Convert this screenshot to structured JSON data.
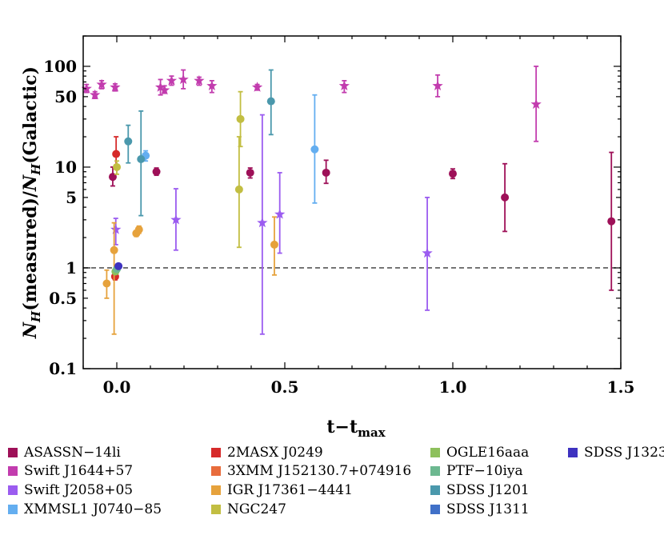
{
  "chart_data": {
    "type": "scatter",
    "title": "",
    "xlabel": "t−t",
    "xlabel_sub": "max",
    "ylabel_parts": [
      "N",
      "H",
      "(measured)/",
      "N",
      "H",
      "(Galactic)"
    ],
    "ylabel": "NH(measured)/NH(Galactic)",
    "xlim": [
      -0.1,
      1.5
    ],
    "ylim": [
      0.1,
      200
    ],
    "yscale": "log",
    "grid": false,
    "legend_position": "bottom",
    "x_ticks": [
      0.0,
      0.5,
      1.0,
      1.5
    ],
    "x_tick_labels": [
      "0.0",
      "0.5",
      "1.0",
      "1.5"
    ],
    "y_ticks": [
      0.1,
      0.5,
      1,
      5,
      10,
      50,
      100
    ],
    "y_tick_labels": [
      "0.1",
      "0.5",
      "1",
      "5",
      "10",
      "50",
      "100"
    ],
    "reference_line": {
      "y": 1,
      "style": "dashed",
      "color": "#555555"
    },
    "series": [
      {
        "name": "ASASSN−14li",
        "color": "#9e1058",
        "marker": "circle",
        "points": [
          {
            "x": -0.012,
            "y": 8.0,
            "lo": 6.5,
            "hi": 10.0
          },
          {
            "x": 0.118,
            "y": 9.0,
            "lo": 8.3,
            "hi": 9.8
          },
          {
            "x": 0.397,
            "y": 8.8,
            "lo": 7.8,
            "hi": 9.8
          },
          {
            "x": 0.623,
            "y": 8.8,
            "lo": 6.9,
            "hi": 11.7
          },
          {
            "x": 1.0,
            "y": 8.6,
            "lo": 7.7,
            "hi": 9.6
          },
          {
            "x": 1.155,
            "y": 5.0,
            "lo": 2.3,
            "hi": 10.8
          },
          {
            "x": 1.472,
            "y": 2.9,
            "lo": 0.6,
            "hi": 14.0
          }
        ]
      },
      {
        "name": "Swift J1644+57",
        "color": "#c23cae",
        "marker": "star",
        "points": [
          {
            "x": -0.09,
            "y": 60,
            "lo": 55,
            "hi": 66
          },
          {
            "x": -0.065,
            "y": 52,
            "lo": 48,
            "hi": 56
          },
          {
            "x": -0.045,
            "y": 66,
            "lo": 60,
            "hi": 72
          },
          {
            "x": -0.005,
            "y": 62,
            "lo": 57,
            "hi": 67
          },
          {
            "x": 0.13,
            "y": 62,
            "lo": 52,
            "hi": 74
          },
          {
            "x": 0.142,
            "y": 58,
            "lo": 54,
            "hi": 64
          },
          {
            "x": 0.163,
            "y": 72,
            "lo": 65,
            "hi": 80
          },
          {
            "x": 0.198,
            "y": 74,
            "lo": 60,
            "hi": 92
          },
          {
            "x": 0.245,
            "y": 72,
            "lo": 65,
            "hi": 78
          },
          {
            "x": 0.283,
            "y": 64,
            "lo": 55,
            "hi": 72
          },
          {
            "x": 0.418,
            "y": 62,
            "lo": 58,
            "hi": 66
          },
          {
            "x": 0.677,
            "y": 64,
            "lo": 55,
            "hi": 72
          },
          {
            "x": 0.955,
            "y": 64,
            "lo": 50,
            "hi": 82
          },
          {
            "x": 1.248,
            "y": 42,
            "lo": 18,
            "hi": 100
          }
        ]
      },
      {
        "name": "Swift J2058+05",
        "color": "#9b5cf0",
        "marker": "star",
        "points": [
          {
            "x": -0.003,
            "y": 2.4,
            "lo": 1.7,
            "hi": 3.1
          },
          {
            "x": 0.176,
            "y": 3.0,
            "lo": 1.5,
            "hi": 6.1
          },
          {
            "x": 0.433,
            "y": 2.8,
            "lo": 0.22,
            "hi": 33
          },
          {
            "x": 0.485,
            "y": 3.4,
            "lo": 1.4,
            "hi": 8.8
          },
          {
            "x": 0.924,
            "y": 1.4,
            "lo": 0.38,
            "hi": 5.0
          }
        ]
      },
      {
        "name": "XMMSL1 J0740−85",
        "color": "#64aef0",
        "marker": "circle",
        "points": [
          {
            "x": 0.086,
            "y": 13.0,
            "lo": 11.5,
            "hi": 14.5
          },
          {
            "x": 0.589,
            "y": 15.0,
            "lo": 4.4,
            "hi": 52
          }
        ]
      },
      {
        "name": "2MASX J0249",
        "color": "#d62a2a",
        "marker": "circle",
        "points": [
          {
            "x": -0.002,
            "y": 13.5,
            "lo": 10.0,
            "hi": 20.0
          },
          {
            "x": -0.005,
            "y": 0.82,
            "lo": 0.76,
            "hi": 0.9
          }
        ]
      },
      {
        "name": "3XMM J152130.7+074916",
        "color": "#e86c3c",
        "marker": "circle",
        "points": []
      },
      {
        "name": "IGR J17361−4441",
        "color": "#e6a23c",
        "marker": "circle",
        "points": [
          {
            "x": -0.03,
            "y": 0.7,
            "lo": 0.5,
            "hi": 0.95
          },
          {
            "x": -0.008,
            "y": 1.5,
            "lo": 0.22,
            "hi": 2.8
          },
          {
            "x": 0.058,
            "y": 2.2,
            "lo": 2.05,
            "hi": 2.35
          },
          {
            "x": 0.066,
            "y": 2.4,
            "lo": 2.2,
            "hi": 2.6
          },
          {
            "x": 0.469,
            "y": 1.7,
            "lo": 0.85,
            "hi": 3.2
          }
        ]
      },
      {
        "name": "NGC247",
        "color": "#c2be42",
        "marker": "circle",
        "points": [
          {
            "x": 0.0,
            "y": 10.0,
            "lo": 8.5,
            "hi": 11.5
          },
          {
            "x": 0.364,
            "y": 6.0,
            "lo": 1.6,
            "hi": 20
          },
          {
            "x": 0.368,
            "y": 30.0,
            "lo": 16,
            "hi": 56
          }
        ]
      },
      {
        "name": "OGLE16aaa",
        "color": "#8dc05c",
        "marker": "circle",
        "points": [
          {
            "x": -0.004,
            "y": 0.92,
            "lo": 0.87,
            "hi": 0.97
          }
        ]
      },
      {
        "name": "PTF−10iya",
        "color": "#6cb890",
        "marker": "circle",
        "points": [
          {
            "x": 0.0,
            "y": 0.97,
            "lo": 0.93,
            "hi": 1.01
          }
        ]
      },
      {
        "name": "SDSS J1201",
        "color": "#4a98ac",
        "marker": "circle",
        "points": [
          {
            "x": 0.034,
            "y": 18.0,
            "lo": 11.0,
            "hi": 26.0
          },
          {
            "x": 0.072,
            "y": 12.0,
            "lo": 3.3,
            "hi": 36.0
          },
          {
            "x": 0.459,
            "y": 45.0,
            "lo": 21.0,
            "hi": 92.0
          }
        ]
      },
      {
        "name": "SDSS J1311",
        "color": "#4070c8",
        "marker": "circle",
        "points": []
      },
      {
        "name": "SDSS J1323",
        "color": "#3e32c0",
        "marker": "circle",
        "points": [
          {
            "x": 0.005,
            "y": 1.04,
            "lo": 1.0,
            "hi": 1.08
          }
        ]
      }
    ]
  }
}
